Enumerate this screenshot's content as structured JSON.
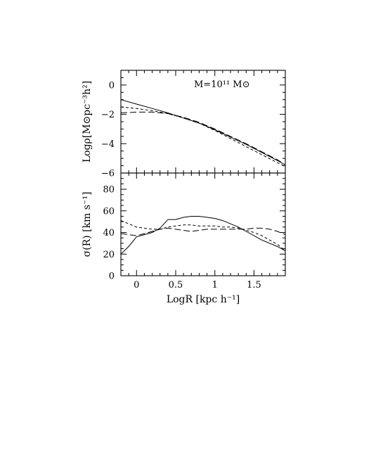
{
  "chart_data": [
    {
      "type": "line",
      "panel": "top",
      "ylabel": "Logρ[M⊙pc⁻³h²]",
      "xlim": [
        -0.2,
        1.9
      ],
      "ylim": [
        -6,
        1
      ],
      "yticks": [
        -6,
        -4,
        -2,
        0
      ],
      "yticklabels": [
        "−6",
        "−4",
        "−2",
        "0"
      ],
      "annotation": "M=10¹¹ M⊙",
      "series": [
        {
          "style": "solid",
          "x": [
            -0.2,
            0.0,
            0.2,
            0.4,
            0.6,
            0.8,
            1.0,
            1.2,
            1.4,
            1.6,
            1.8,
            1.9
          ],
          "y": [
            -1.0,
            -1.3,
            -1.6,
            -1.9,
            -2.25,
            -2.6,
            -3.05,
            -3.55,
            -4.05,
            -4.6,
            -5.15,
            -5.45
          ]
        },
        {
          "style": "short-dash",
          "x": [
            -0.2,
            0.0,
            0.2,
            0.4,
            0.6,
            0.8,
            1.0,
            1.2,
            1.4,
            1.6,
            1.8,
            1.9
          ],
          "y": [
            -1.5,
            -1.6,
            -1.75,
            -1.95,
            -2.25,
            -2.6,
            -3.1,
            -3.65,
            -4.2,
            -4.75,
            -5.3,
            -5.55
          ]
        },
        {
          "style": "long-dash",
          "x": [
            -0.2,
            0.0,
            0.2,
            0.4,
            0.6,
            0.8,
            1.0,
            1.2,
            1.4,
            1.6,
            1.8,
            1.9
          ],
          "y": [
            -1.9,
            -1.85,
            -1.85,
            -1.95,
            -2.2,
            -2.55,
            -3.0,
            -3.5,
            -4.0,
            -4.55,
            -5.1,
            -5.45
          ]
        }
      ]
    },
    {
      "type": "line",
      "panel": "bottom",
      "xlabel": "LogR [kpc h⁻¹]",
      "ylabel": "σ(R) [km s⁻¹]",
      "xlim": [
        -0.2,
        1.9
      ],
      "ylim": [
        0,
        95
      ],
      "xticks": [
        0,
        0.5,
        1,
        1.5
      ],
      "xticklabels": [
        "0",
        "0.5",
        "1",
        "1.5"
      ],
      "yticks": [
        0,
        20,
        40,
        60,
        80
      ],
      "yticklabels": [
        "0",
        "20",
        "40",
        "60",
        "80"
      ],
      "series": [
        {
          "style": "solid",
          "x": [
            -0.2,
            -0.1,
            0.0,
            0.1,
            0.2,
            0.3,
            0.4,
            0.5,
            0.6,
            0.7,
            0.8,
            0.9,
            1.0,
            1.1,
            1.2,
            1.3,
            1.4,
            1.5,
            1.6,
            1.7,
            1.8,
            1.9
          ],
          "y": [
            20,
            27,
            36,
            38,
            40,
            44,
            52,
            52,
            54,
            55,
            55,
            54,
            53,
            51,
            48,
            45,
            41,
            37,
            33,
            30,
            27,
            23
          ]
        },
        {
          "style": "short-dash",
          "x": [
            -0.2,
            -0.1,
            0.0,
            0.1,
            0.2,
            0.3,
            0.4,
            0.5,
            0.6,
            0.7,
            0.8,
            0.9,
            1.0,
            1.1,
            1.2,
            1.3,
            1.4,
            1.5,
            1.6,
            1.7,
            1.8,
            1.9
          ],
          "y": [
            51,
            48,
            45,
            44,
            43,
            43,
            45,
            46,
            47,
            47,
            46,
            46,
            46,
            45,
            45,
            44,
            42,
            40,
            37,
            33,
            29,
            23
          ]
        },
        {
          "style": "long-dash",
          "x": [
            -0.2,
            -0.1,
            0.0,
            0.1,
            0.2,
            0.3,
            0.4,
            0.5,
            0.6,
            0.7,
            0.8,
            0.9,
            1.0,
            1.1,
            1.2,
            1.3,
            1.4,
            1.5,
            1.6,
            1.7,
            1.8,
            1.9
          ],
          "y": [
            39,
            38,
            37,
            39,
            41,
            43,
            44,
            43,
            42,
            41,
            42,
            43,
            43,
            43,
            43,
            43,
            43,
            44,
            44,
            43,
            41,
            38
          ]
        }
      ]
    }
  ]
}
